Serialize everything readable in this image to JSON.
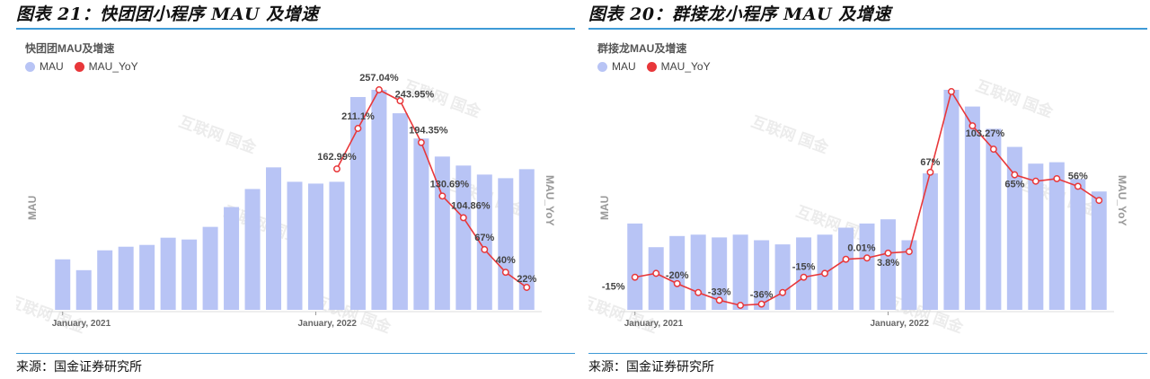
{
  "panels": [
    {
      "figure_title": "图表 21：快团团小程序 MAU 及增速",
      "source": "来源：国金证券研究所",
      "watermark": "互联网 国金",
      "chart_data": {
        "type": "bar",
        "title": "快团团MAU及增速",
        "legend": [
          "MAU",
          "MAU_YoY"
        ],
        "legend_position": "top-left",
        "ylabel_left": "MAU",
        "ylabel_right": "MAU_YoY",
        "x_tick_labels": [
          {
            "index": 0,
            "label": "January, 2021"
          },
          {
            "index": 12,
            "label": "January, 2022"
          }
        ],
        "grid": false,
        "colors": {
          "bar": "#b8c4f5",
          "line": "#e8373a"
        },
        "series": [
          {
            "name": "MAU",
            "values": [
              0.28,
              0.22,
              0.33,
              0.35,
              0.36,
              0.4,
              0.39,
              0.46,
              0.57,
              0.67,
              0.79,
              0.71,
              0.7,
              0.71,
              1.18,
              1.22,
              1.09,
              0.95,
              0.85,
              0.8,
              0.75,
              0.73,
              0.78
            ]
          },
          {
            "name": "MAU_YoY",
            "start_index": 13,
            "values": [
              162.99,
              211.1,
              257.04,
              243.95,
              194.35,
              130.69,
              104.86,
              67,
              40,
              22
            ],
            "labels": [
              "162.99%",
              "211.1%",
              "257.04%",
              "243.95%",
              "194.35%",
              "130.69%",
              "104.86%",
              "67%",
              "40%",
              "22%"
            ]
          }
        ]
      }
    },
    {
      "figure_title": "图表 20：群接龙小程序 MAU 及增速",
      "source": "来源：国金证券研究所",
      "watermark": "互联网 国金",
      "chart_data": {
        "type": "bar",
        "title": "群接龙MAU及增速",
        "legend": [
          "MAU",
          "MAU_YoY"
        ],
        "legend_position": "top-left",
        "ylabel_left": "MAU",
        "ylabel_right": "MAU_YoY",
        "x_tick_labels": [
          {
            "index": 0,
            "label": "January, 2021"
          },
          {
            "index": 12,
            "label": "January, 2022"
          }
        ],
        "grid": false,
        "colors": {
          "bar": "#b8c4f5",
          "line": "#e8373a"
        },
        "series": [
          {
            "name": "MAU",
            "values": [
              0.62,
              0.45,
              0.53,
              0.54,
              0.52,
              0.54,
              0.5,
              0.47,
              0.52,
              0.54,
              0.59,
              0.62,
              0.65,
              0.5,
              0.98,
              1.58,
              1.46,
              1.3,
              1.17,
              1.05,
              1.06,
              0.94,
              0.85
            ]
          },
          {
            "name": "MAU_YoY",
            "start_index": 0,
            "values": [
              -15,
              -12,
              -20,
              -27,
              -33,
              -37,
              -36,
              -27,
              -15,
              -12,
              -1,
              0.01,
              3.8,
              5,
              67,
              130,
              103.27,
              85,
              65,
              60,
              62,
              56,
              45
            ],
            "labels": {
              "0": "-15%",
              "2": "-20%",
              "4": "-33%",
              "6": "-36%",
              "8": "-15%",
              "11": "0.01%",
              "12": "3.8%",
              "14": "67%",
              "16": "103.27%",
              "18": "65%",
              "21": "56%"
            }
          }
        ]
      }
    }
  ]
}
